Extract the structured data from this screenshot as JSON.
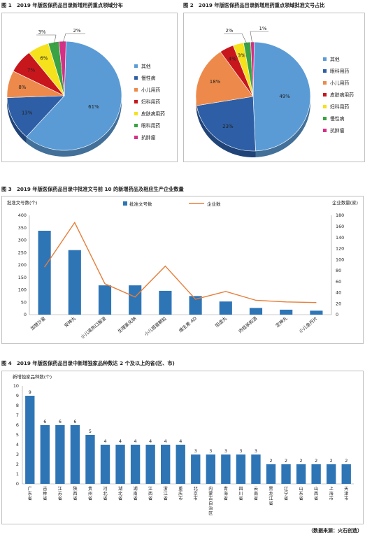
{
  "chart_data": [
    {
      "type": "pie",
      "title": "图 1　2019 年版医保药品目录新增用药重点领域分布",
      "categories": [
        "其他",
        "慢性病",
        "小儿用药",
        "妇科用药",
        "皮肤病用药",
        "眼科用药",
        "抗肿瘤"
      ],
      "values": [
        61,
        13,
        8,
        7,
        6,
        3,
        2
      ],
      "labels": [
        "61%",
        "13%",
        "8%",
        "7%",
        "6%",
        "3%",
        "2%"
      ],
      "colors": [
        "#5b9bd5",
        "#2e5fa6",
        "#ed8a4b",
        "#c8161d",
        "#f5e11c",
        "#3aa244",
        "#d62f86"
      ],
      "legend": "right"
    },
    {
      "type": "pie",
      "title": "图 2　2019 年版医保药品目录新增用药重点领域批准文号占比",
      "categories": [
        "其他",
        "眼科用药",
        "小儿用药",
        "皮肤病用药",
        "妇科用药",
        "慢性病",
        "抗肿瘤"
      ],
      "values": [
        49,
        23,
        18,
        4,
        3,
        2,
        1
      ],
      "labels": [
        "49%",
        "23%",
        "18%",
        "4%",
        "3%",
        "2%",
        "1%"
      ],
      "colors": [
        "#5b9bd5",
        "#2e5fa6",
        "#ed8a4b",
        "#c8161d",
        "#f5e11c",
        "#3aa244",
        "#d62f86"
      ],
      "legend": "right"
    },
    {
      "type": "bar",
      "title": "图 3　2019 年版医保药品目录中批准文号前 10 的新增药品及相应生产企业数量",
      "ylabel": "批准文号数(个)",
      "y2label": "企业数量(家)",
      "categories": [
        "加替沙星",
        "安神丸",
        "小儿退热口服液",
        "生理氯化钠",
        "小儿感冒颗粒",
        "维生素 AD",
        "阳虚丸",
        "肉桂茶和酒",
        "定神丸",
        "小儿金丹片"
      ],
      "series": [
        {
          "name": "批准文号数",
          "type": "bar",
          "values": [
            338,
            260,
            118,
            118,
            96,
            75,
            53,
            27,
            20,
            16
          ],
          "color": "#2e75b6"
        },
        {
          "name": "企业数",
          "type": "line",
          "axis": "right",
          "values": [
            86,
            167,
            56,
            32,
            88,
            28,
            42,
            26,
            23,
            22
          ],
          "color": "#e67e3a"
        }
      ],
      "ylim": [
        0,
        400
      ],
      "yticks": [
        "0",
        "50",
        "100",
        "150",
        "200",
        "250",
        "300",
        "350",
        "400"
      ],
      "y2lim": [
        0,
        180
      ],
      "y2ticks": [
        "0",
        "20",
        "40",
        "60",
        "80",
        "100",
        "120",
        "140",
        "160",
        "180"
      ],
      "legend": "top"
    },
    {
      "type": "bar",
      "title": "图 4　2019 年版医保药品目录中新增独家品种数达 2 个及以上的省(区、市)",
      "ylabel": "新增独家品种数(个)",
      "categories": [
        "广东省",
        "吉林省",
        "江苏省",
        "陕西省",
        "贵州省",
        "河北省",
        "湖北省",
        "湖南省",
        "江西省",
        "浙江省",
        "重庆市",
        "北京市",
        "内蒙古自治区",
        "青海省",
        "四川省",
        "云南省",
        "黑龙江省",
        "辽宁省",
        "山东省",
        "山西省",
        "上海市",
        "天津市"
      ],
      "values": [
        9,
        6,
        6,
        6,
        5,
        4,
        4,
        4,
        4,
        4,
        4,
        3,
        3,
        3,
        3,
        3,
        2,
        2,
        2,
        2,
        2,
        2
      ],
      "ylim": [
        0,
        10
      ],
      "yticks": [
        "0",
        "1",
        "2",
        "3",
        "4",
        "5",
        "6",
        "7",
        "8",
        "9",
        "10"
      ],
      "color": "#2e75b6"
    }
  ],
  "source": "（数据来源：火石创造）"
}
